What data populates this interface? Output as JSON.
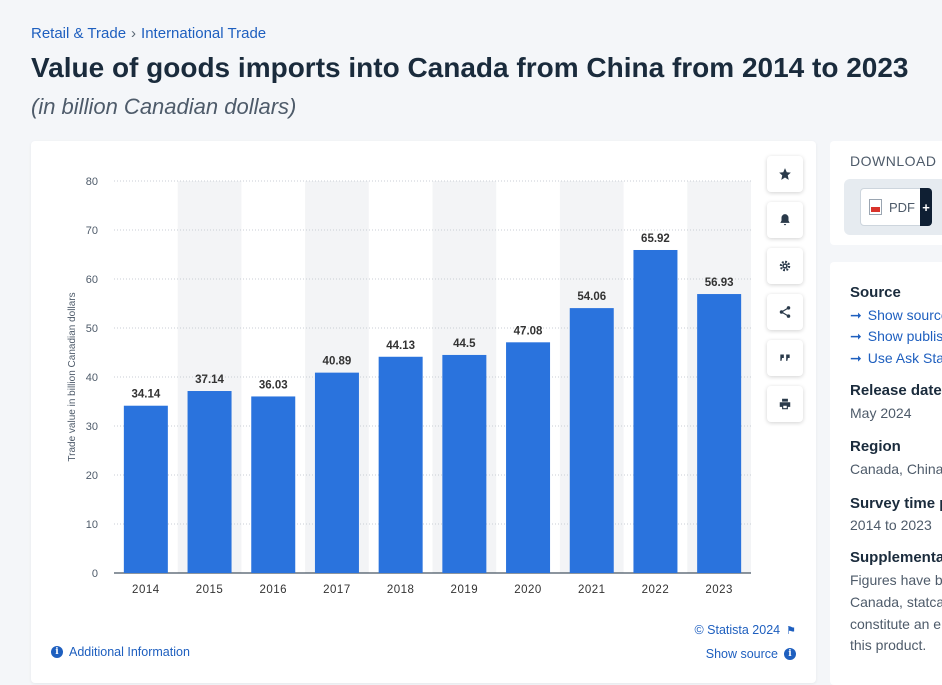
{
  "breadcrumb": {
    "items": [
      "Retail & Trade",
      "International Trade"
    ],
    "separator": "›"
  },
  "header": {
    "title": "Value of goods imports into Canada from China from 2014 to 2023",
    "subtitle": "(in billion Canadian dollars)"
  },
  "chart_data": {
    "type": "bar",
    "categories": [
      "2014",
      "2015",
      "2016",
      "2017",
      "2018",
      "2019",
      "2020",
      "2021",
      "2022",
      "2023"
    ],
    "values": [
      34.14,
      37.14,
      36.03,
      40.89,
      44.13,
      44.5,
      47.08,
      54.06,
      65.92,
      56.93
    ],
    "value_labels": [
      "34.14",
      "37.14",
      "36.03",
      "40.89",
      "44.13",
      "44.5",
      "47.08",
      "54.06",
      "65.92",
      "56.93"
    ],
    "ylabel": "Trade value in billion Canadian dollars",
    "xlabel": "",
    "ylim": [
      0,
      80
    ],
    "yticks": [
      "0",
      "10",
      "20",
      "30",
      "40",
      "50",
      "60",
      "70",
      "80"
    ],
    "bar_color": "#2a73dd",
    "grid": true,
    "alternating_column_shading": true
  },
  "chart_footer": {
    "additional_info": "Additional Information",
    "copyright": "© Statista 2024",
    "show_source": "Show source"
  },
  "toolbar": {
    "icons": [
      "star-icon",
      "bell-icon",
      "gear-icon",
      "share-icon",
      "quote-icon",
      "print-icon"
    ]
  },
  "download": {
    "title": "DOWNLOAD",
    "pdf_label": "PDF",
    "plus_label": "+"
  },
  "info": {
    "source_heading": "Source",
    "source_links": [
      "Show source",
      "Show publisher",
      "Use Ask Statista"
    ],
    "release_heading": "Release date",
    "release_value": "May 2024",
    "region_heading": "Region",
    "region_value": "Canada, China",
    "survey_heading": "Survey time period",
    "survey_value": "2014 to 2023",
    "supplementary_heading": "Supplementary notes",
    "supplementary_lines": [
      "Figures have been",
      "Canada, statcan",
      "constitute an e",
      "this product."
    ]
  },
  "colors": {
    "accent": "#1e5fbf",
    "bar": "#2a73dd",
    "title": "#1a2b3c"
  }
}
